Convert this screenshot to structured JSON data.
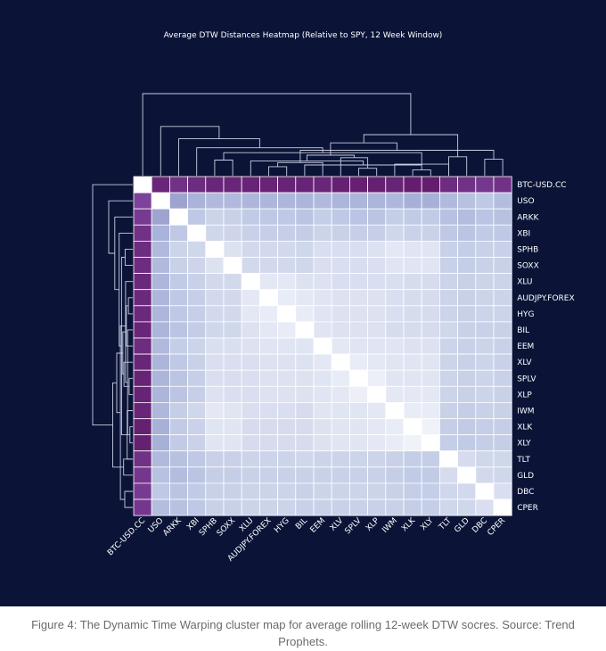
{
  "caption": "Figure 4: The Dynamic Time Warping cluster map for average rolling 12-week DTW socres. Source: Trend Prophets.",
  "colors": {
    "background": "#0b1437",
    "text": "#ffffff",
    "cell_border": "#ffffff",
    "scale": [
      "#ffffff",
      "#dfe4f2",
      "#c3cce6",
      "#a7b0d7",
      "#8a83c0",
      "#7a3f97",
      "#5a0f5c"
    ]
  },
  "chart_data": {
    "type": "heatmap",
    "title": "Average DTW Distances Heatmap (Relative to SPY, 12 Week Window)",
    "labels": [
      "BTC-USD.CC",
      "USO",
      "ARKK",
      "XBI",
      "SPHB",
      "SOXX",
      "XLU",
      "AUDJPY.FOREX",
      "HYG",
      "BIL",
      "EEM",
      "XLV",
      "SPLV",
      "XLP",
      "IWM",
      "XLK",
      "XLY",
      "TLT",
      "GLD",
      "DBC",
      "CPER"
    ],
    "xlabel": "",
    "ylabel": "",
    "colorbar": false,
    "value_scale": "0 = identical (white), 1 = most distant (dark purple); values estimated from cell shading",
    "matrix": [
      [
        0.0,
        0.92,
        0.88,
        0.9,
        0.92,
        0.92,
        0.93,
        0.93,
        0.93,
        0.93,
        0.92,
        0.94,
        0.94,
        0.94,
        0.93,
        0.95,
        0.95,
        0.9,
        0.88,
        0.86,
        0.88
      ],
      [
        0.82,
        0.0,
        0.55,
        0.48,
        0.44,
        0.44,
        0.46,
        0.46,
        0.46,
        0.47,
        0.44,
        0.47,
        0.47,
        0.47,
        0.45,
        0.5,
        0.5,
        0.44,
        0.4,
        0.36,
        0.42
      ],
      [
        0.85,
        0.55,
        0.0,
        0.36,
        0.28,
        0.3,
        0.34,
        0.36,
        0.36,
        0.38,
        0.32,
        0.36,
        0.38,
        0.38,
        0.32,
        0.34,
        0.34,
        0.4,
        0.42,
        0.38,
        0.4
      ],
      [
        0.88,
        0.48,
        0.36,
        0.0,
        0.26,
        0.27,
        0.3,
        0.31,
        0.31,
        0.33,
        0.28,
        0.3,
        0.31,
        0.31,
        0.26,
        0.29,
        0.29,
        0.36,
        0.38,
        0.34,
        0.36
      ],
      [
        0.9,
        0.44,
        0.28,
        0.26,
        0.0,
        0.18,
        0.24,
        0.24,
        0.24,
        0.26,
        0.2,
        0.2,
        0.2,
        0.18,
        0.14,
        0.16,
        0.16,
        0.3,
        0.32,
        0.3,
        0.3
      ],
      [
        0.9,
        0.44,
        0.3,
        0.27,
        0.18,
        0.0,
        0.24,
        0.24,
        0.24,
        0.26,
        0.2,
        0.2,
        0.21,
        0.2,
        0.16,
        0.16,
        0.16,
        0.3,
        0.32,
        0.3,
        0.3
      ],
      [
        0.91,
        0.46,
        0.34,
        0.3,
        0.24,
        0.24,
        0.0,
        0.14,
        0.14,
        0.18,
        0.18,
        0.2,
        0.2,
        0.2,
        0.2,
        0.22,
        0.22,
        0.28,
        0.3,
        0.28,
        0.28
      ],
      [
        0.91,
        0.46,
        0.36,
        0.31,
        0.24,
        0.24,
        0.14,
        0.0,
        0.12,
        0.14,
        0.16,
        0.18,
        0.18,
        0.18,
        0.2,
        0.22,
        0.22,
        0.28,
        0.3,
        0.28,
        0.28
      ],
      [
        0.91,
        0.46,
        0.36,
        0.31,
        0.24,
        0.24,
        0.14,
        0.12,
        0.0,
        0.12,
        0.16,
        0.18,
        0.18,
        0.18,
        0.2,
        0.22,
        0.22,
        0.28,
        0.3,
        0.28,
        0.28
      ],
      [
        0.92,
        0.47,
        0.38,
        0.33,
        0.26,
        0.26,
        0.18,
        0.14,
        0.12,
        0.0,
        0.16,
        0.18,
        0.18,
        0.18,
        0.22,
        0.22,
        0.22,
        0.26,
        0.3,
        0.3,
        0.3
      ],
      [
        0.9,
        0.44,
        0.32,
        0.28,
        0.2,
        0.2,
        0.18,
        0.16,
        0.16,
        0.16,
        0.0,
        0.14,
        0.16,
        0.16,
        0.16,
        0.18,
        0.18,
        0.28,
        0.3,
        0.28,
        0.3
      ],
      [
        0.92,
        0.47,
        0.36,
        0.3,
        0.2,
        0.2,
        0.2,
        0.18,
        0.18,
        0.18,
        0.14,
        0.0,
        0.12,
        0.14,
        0.16,
        0.16,
        0.16,
        0.28,
        0.3,
        0.28,
        0.3
      ],
      [
        0.93,
        0.47,
        0.38,
        0.31,
        0.2,
        0.21,
        0.2,
        0.18,
        0.18,
        0.18,
        0.16,
        0.12,
        0.0,
        0.1,
        0.16,
        0.16,
        0.16,
        0.28,
        0.3,
        0.28,
        0.3
      ],
      [
        0.93,
        0.47,
        0.38,
        0.31,
        0.18,
        0.2,
        0.2,
        0.18,
        0.18,
        0.18,
        0.16,
        0.14,
        0.1,
        0.0,
        0.14,
        0.14,
        0.14,
        0.28,
        0.3,
        0.28,
        0.3
      ],
      [
        0.92,
        0.45,
        0.32,
        0.26,
        0.14,
        0.16,
        0.2,
        0.2,
        0.2,
        0.22,
        0.16,
        0.16,
        0.16,
        0.14,
        0.0,
        0.12,
        0.12,
        0.3,
        0.32,
        0.3,
        0.3
      ],
      [
        0.94,
        0.5,
        0.34,
        0.29,
        0.16,
        0.16,
        0.22,
        0.22,
        0.22,
        0.22,
        0.18,
        0.16,
        0.16,
        0.14,
        0.12,
        0.0,
        0.08,
        0.32,
        0.34,
        0.32,
        0.32
      ],
      [
        0.94,
        0.5,
        0.34,
        0.29,
        0.16,
        0.16,
        0.22,
        0.22,
        0.22,
        0.22,
        0.18,
        0.16,
        0.16,
        0.14,
        0.12,
        0.08,
        0.0,
        0.32,
        0.34,
        0.32,
        0.32
      ],
      [
        0.88,
        0.44,
        0.4,
        0.36,
        0.3,
        0.3,
        0.28,
        0.28,
        0.28,
        0.26,
        0.28,
        0.28,
        0.28,
        0.28,
        0.3,
        0.32,
        0.32,
        0.0,
        0.22,
        0.26,
        0.26
      ],
      [
        0.86,
        0.4,
        0.42,
        0.38,
        0.32,
        0.32,
        0.3,
        0.3,
        0.3,
        0.3,
        0.3,
        0.3,
        0.3,
        0.3,
        0.32,
        0.34,
        0.34,
        0.22,
        0.0,
        0.24,
        0.26
      ],
      [
        0.85,
        0.36,
        0.38,
        0.34,
        0.3,
        0.3,
        0.28,
        0.28,
        0.28,
        0.3,
        0.28,
        0.28,
        0.28,
        0.28,
        0.3,
        0.32,
        0.32,
        0.26,
        0.24,
        0.0,
        0.2
      ],
      [
        0.86,
        0.42,
        0.4,
        0.36,
        0.3,
        0.3,
        0.28,
        0.28,
        0.28,
        0.3,
        0.3,
        0.3,
        0.3,
        0.3,
        0.3,
        0.32,
        0.32,
        0.26,
        0.26,
        0.2,
        0.0
      ]
    ],
    "dendrogram": {
      "leaf_order": [
        "BTC-USD.CC",
        "USO",
        "ARKK",
        "XBI",
        "SPHB",
        "SOXX",
        "XLU",
        "AUDJPY.FOREX",
        "HYG",
        "BIL",
        "EEM",
        "XLV",
        "SPLV",
        "XLP",
        "IWM",
        "XLK",
        "XLY",
        "TLT",
        "GLD",
        "DBC",
        "CPER"
      ],
      "merges": [
        [
          15,
          16,
          0.07
        ],
        [
          12,
          13,
          0.09
        ],
        [
          7,
          8,
          0.11
        ],
        [
          21,
          9,
          0.13
        ],
        [
          14,
          17,
          0.14
        ],
        [
          10,
          23,
          0.16
        ],
        [
          6,
          24,
          0.18
        ],
        [
          4,
          5,
          0.19
        ],
        [
          19,
          20,
          0.2
        ],
        [
          11,
          22,
          0.22
        ],
        [
          17,
          18,
          0.23
        ],
        [
          27,
          30,
          0.25
        ],
        [
          28,
          25,
          0.28
        ],
        [
          29,
          26,
          0.31
        ],
        [
          3,
          33,
          0.34
        ],
        [
          32,
          34,
          0.4
        ],
        [
          2,
          35,
          0.45
        ],
        [
          31,
          36,
          0.5
        ],
        [
          1,
          37,
          0.6
        ],
        [
          0,
          38,
          1.0
        ]
      ]
    }
  }
}
